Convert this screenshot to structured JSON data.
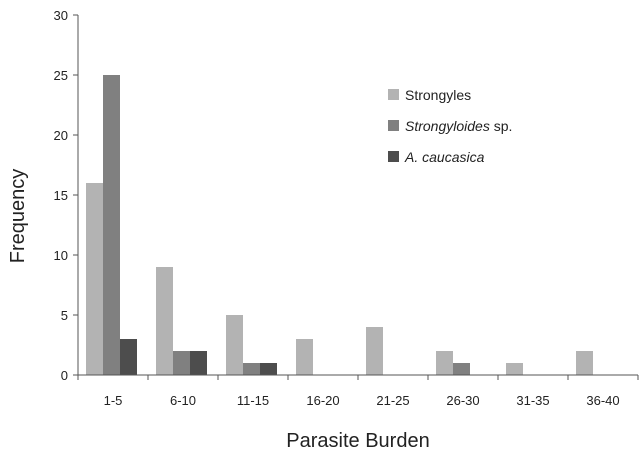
{
  "chart_data": {
    "type": "bar",
    "xlabel": "Parasite Burden",
    "ylabel": "Frequency",
    "ylim": [
      0,
      30
    ],
    "yticks": [
      0,
      5,
      10,
      15,
      20,
      25,
      30
    ],
    "categories": [
      "1-5",
      "6-10",
      "11-15",
      "16-20",
      "21-25",
      "26-30",
      "31-35",
      "36-40"
    ],
    "legend_position": "top-right",
    "series": [
      {
        "name": "Strongyles",
        "name_italic": "",
        "name_rest": "Strongyles",
        "color": "#b3b3b3",
        "values": [
          16,
          9,
          5,
          3,
          4,
          2,
          1,
          2
        ]
      },
      {
        "name": "Strongyloides sp.",
        "name_italic": "Strongyloides",
        "name_rest": " sp.",
        "color": "#808080",
        "values": [
          25,
          2,
          1,
          0,
          0,
          1,
          0,
          0
        ]
      },
      {
        "name": "A. caucasica",
        "name_italic": "A. caucasica",
        "name_rest": "",
        "color": "#4d4d4d",
        "values": [
          3,
          2,
          1,
          0,
          0,
          0,
          0,
          0
        ]
      }
    ]
  }
}
